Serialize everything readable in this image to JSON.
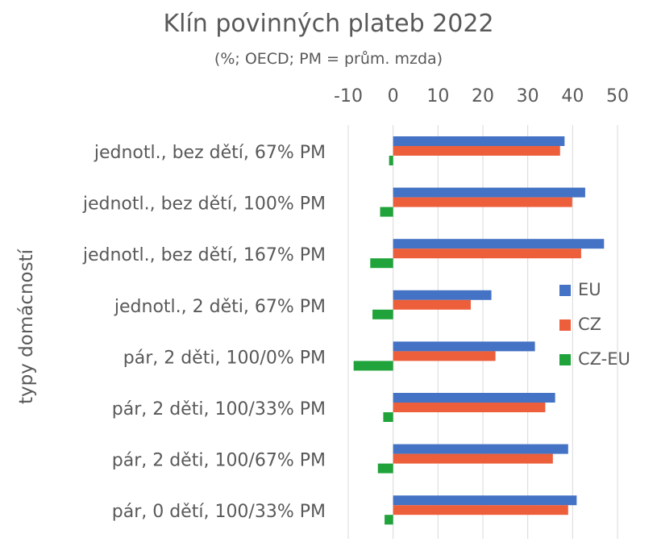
{
  "chart_data": {
    "type": "bar",
    "orientation": "horizontal",
    "title": "Klín povinných plateb 2022",
    "subtitle": "(%; OECD; PM = prům. mzda)",
    "ylabel": "typy domácností",
    "xlabel": "",
    "xlim": [
      -10,
      50
    ],
    "xticks": [
      -10,
      0,
      10,
      20,
      30,
      40,
      50
    ],
    "xaxis_position": "top",
    "grid": "vertical",
    "legend_position": "right",
    "categories": [
      "jednotl., bez dětí, 67% PM",
      "jednotl., bez dětí, 100% PM",
      "jednotl., bez dětí, 167% PM",
      "jednotl., 2 děti, 67% PM",
      "pár, 2 děti, 100/0% PM",
      "pár, 2 děti, 100/33% PM",
      "pár, 2 děti, 100/67% PM",
      "pár, 0 dětí, 100/33% PM"
    ],
    "series": [
      {
        "name": "EU",
        "color": "#4472C4",
        "values": [
          38.2,
          42.8,
          47.0,
          21.9,
          31.6,
          36.1,
          39.0,
          40.9
        ]
      },
      {
        "name": "CZ",
        "color": "#ED5E3B",
        "values": [
          37.2,
          39.9,
          41.9,
          17.3,
          22.8,
          33.9,
          35.6,
          39.0
        ]
      },
      {
        "name": "CZ-EU",
        "color": "#1FA33A",
        "values": [
          -0.9,
          -2.9,
          -5.1,
          -4.6,
          -8.8,
          -2.2,
          -3.4,
          -1.9
        ]
      }
    ]
  }
}
